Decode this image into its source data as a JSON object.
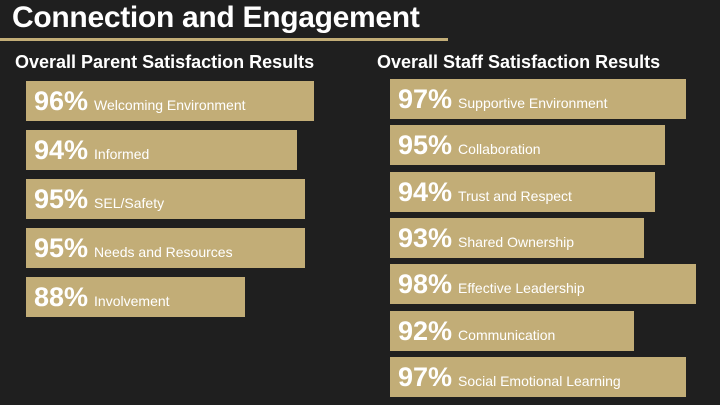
{
  "title": "Connection and Engagement",
  "colors": {
    "bar": "#c2ad77",
    "background": "#1f1f1f",
    "text": "#ffffff"
  },
  "chart_data": [
    {
      "type": "bar",
      "orientation": "horizontal",
      "title": "Overall Parent Satisfaction Results",
      "categories": [
        "Welcoming Environment",
        "Informed",
        "SEL/Safety",
        "Needs and Resources",
        "Involvement"
      ],
      "values": [
        96,
        94,
        95,
        95,
        88
      ],
      "value_labels": [
        "96%",
        "94%",
        "95%",
        "95%",
        "88%"
      ],
      "unit": "%",
      "grid": false
    },
    {
      "type": "bar",
      "orientation": "horizontal",
      "title": "Overall Staff Satisfaction Results",
      "categories": [
        "Supportive Environment",
        "Collaboration",
        "Trust and Respect",
        "Shared Ownership",
        "Effective Leadership",
        "Communication",
        "Social Emotional Learning"
      ],
      "values": [
        97,
        95,
        94,
        93,
        98,
        92,
        97
      ],
      "value_labels": [
        "97%",
        "95%",
        "94%",
        "93%",
        "98%",
        "92%",
        "97%"
      ],
      "unit": "%",
      "grid": false
    }
  ]
}
